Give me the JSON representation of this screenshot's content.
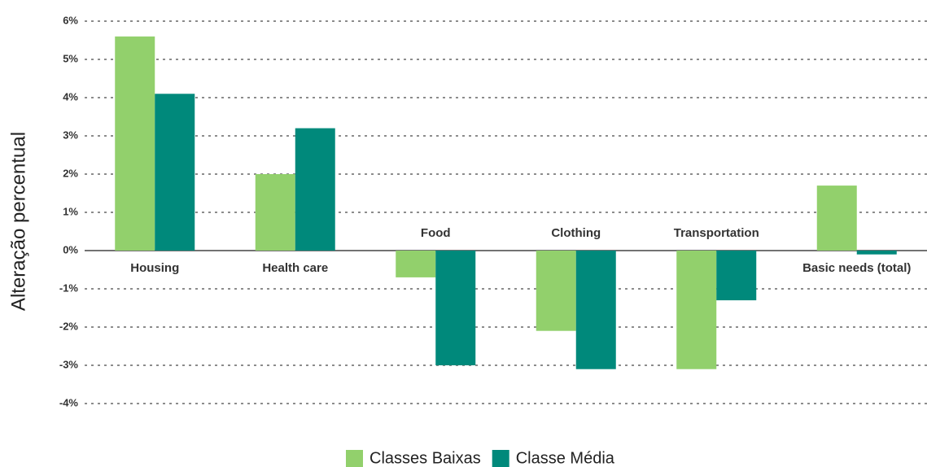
{
  "chart_data": {
    "type": "bar",
    "y_axis_label": "Alteração percentual",
    "categories": [
      "Housing",
      "Health care",
      "Food",
      "Clothing",
      "Transportation",
      "Basic needs (total)"
    ],
    "series": [
      {
        "name": "Classes Baixas",
        "color": "#92d06c",
        "values": [
          5.6,
          2.0,
          -0.7,
          -2.1,
          -3.1,
          1.7
        ]
      },
      {
        "name": "Classe Média",
        "color": "#00897b",
        "values": [
          4.1,
          3.2,
          -3.0,
          -3.1,
          -1.3,
          -0.1
        ]
      }
    ],
    "ylim": [
      -4,
      6
    ],
    "yticks": [
      {
        "value": -4,
        "label": "-4%"
      },
      {
        "value": -3,
        "label": "-3%"
      },
      {
        "value": -2,
        "label": "-2%"
      },
      {
        "value": -1,
        "label": "-1%"
      },
      {
        "value": 0,
        "label": "0%"
      },
      {
        "value": 1,
        "label": "1%"
      },
      {
        "value": 2,
        "label": "2%"
      },
      {
        "value": 3,
        "label": "3%"
      },
      {
        "value": 4,
        "label": "4%"
      },
      {
        "value": 5,
        "label": "5%"
      },
      {
        "value": 6,
        "label": "6%"
      }
    ],
    "grid": true
  }
}
